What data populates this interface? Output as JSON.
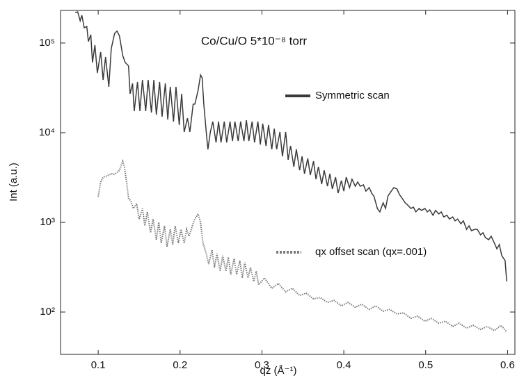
{
  "chart_data": {
    "type": "line",
    "annotation": "Co/Cu/O 5*10⁻⁸ torr",
    "x_label": "qz (Å⁻¹)",
    "y_label": "Int (a.u.)",
    "y_log": true,
    "xlim": [
      0.054,
      0.609
    ],
    "ylim": [
      33.7,
      231000
    ],
    "xticks": [
      0.1,
      0.2,
      0.3,
      0.4,
      0.5,
      0.6
    ],
    "yticks": [
      {
        "value": 100,
        "label": "10²"
      },
      {
        "value": 1000,
        "label": "10³"
      },
      {
        "value": 10000,
        "label": "10⁴"
      },
      {
        "value": 100000,
        "label": "10⁵"
      }
    ],
    "series": [
      {
        "name": "Symmetric scan",
        "color": "#3a3a3a",
        "line_style": "solid",
        "x": [
          0.072,
          0.075,
          0.078,
          0.08,
          0.083,
          0.086,
          0.088,
          0.091,
          0.093,
          0.096,
          0.099,
          0.103,
          0.106,
          0.109,
          0.113,
          0.116,
          0.12,
          0.123,
          0.126,
          0.13,
          0.133,
          0.137,
          0.139,
          0.142,
          0.144,
          0.148,
          0.151,
          0.154,
          0.158,
          0.161,
          0.165,
          0.168,
          0.171,
          0.175,
          0.178,
          0.182,
          0.185,
          0.188,
          0.192,
          0.195,
          0.199,
          0.202,
          0.205,
          0.209,
          0.212,
          0.216,
          0.218,
          0.222,
          0.225,
          0.227,
          0.229,
          0.232,
          0.234,
          0.237,
          0.24,
          0.244,
          0.247,
          0.25,
          0.254,
          0.257,
          0.261,
          0.264,
          0.267,
          0.271,
          0.274,
          0.278,
          0.281,
          0.284,
          0.288,
          0.291,
          0.295,
          0.298,
          0.301,
          0.305,
          0.308,
          0.312,
          0.315,
          0.318,
          0.322,
          0.325,
          0.329,
          0.332,
          0.335,
          0.339,
          0.342,
          0.346,
          0.349,
          0.352,
          0.356,
          0.359,
          0.363,
          0.366,
          0.369,
          0.373,
          0.376,
          0.38,
          0.383,
          0.386,
          0.39,
          0.393,
          0.397,
          0.4,
          0.403,
          0.407,
          0.41,
          0.414,
          0.417,
          0.42,
          0.424,
          0.427,
          0.431,
          0.434,
          0.437,
          0.441,
          0.444,
          0.448,
          0.451,
          0.454,
          0.458,
          0.461,
          0.465,
          0.468,
          0.471,
          0.475,
          0.478,
          0.482,
          0.485,
          0.488,
          0.492,
          0.495,
          0.499,
          0.502,
          0.505,
          0.509,
          0.512,
          0.516,
          0.519,
          0.522,
          0.526,
          0.529,
          0.533,
          0.536,
          0.539,
          0.543,
          0.546,
          0.55,
          0.553,
          0.556,
          0.56,
          0.563,
          0.567,
          0.57,
          0.573,
          0.577,
          0.58,
          0.584,
          0.587,
          0.59,
          0.593,
          0.597,
          0.599
        ],
        "values": [
          219000,
          223000,
          177000,
          204000,
          148000,
          153000,
          104000,
          124000,
          60700,
          94800,
          46400,
          79300,
          38800,
          70000,
          32500,
          86700,
          128000,
          136000,
          120000,
          72400,
          60700,
          55500,
          27200,
          35500,
          17400,
          36800,
          17400,
          38800,
          17400,
          38800,
          16800,
          38800,
          15900,
          36800,
          15100,
          35500,
          14000,
          32500,
          13300,
          32500,
          12200,
          27200,
          10200,
          14500,
          10200,
          20800,
          20800,
          29700,
          44000,
          40900,
          20800,
          10200,
          6520,
          10200,
          13300,
          7780,
          13300,
          7780,
          13300,
          7780,
          13300,
          8070,
          13300,
          8070,
          13300,
          8070,
          13800,
          8070,
          13300,
          7780,
          13300,
          7380,
          12600,
          7120,
          12200,
          6520,
          11100,
          6520,
          10200,
          5450,
          10200,
          4990,
          7120,
          4170,
          6520,
          3810,
          5450,
          3490,
          5160,
          3370,
          4810,
          3030,
          4170,
          2670,
          3810,
          2530,
          3490,
          2360,
          3190,
          2120,
          2920,
          2230,
          3190,
          2440,
          3030,
          2530,
          2820,
          2530,
          2620,
          2230,
          2440,
          2120,
          1940,
          1430,
          1310,
          1650,
          1430,
          1970,
          2230,
          2440,
          2360,
          2040,
          1870,
          1650,
          1560,
          1430,
          1480,
          1310,
          1430,
          1360,
          1430,
          1310,
          1380,
          1200,
          1360,
          1240,
          1310,
          1150,
          1200,
          1090,
          1150,
          1040,
          1090,
          965,
          1040,
          836,
          914,
          807,
          836,
          836,
          725,
          765,
          675,
          640,
          700,
          585,
          507,
          565,
          424,
          375,
          219
        ]
      },
      {
        "name": "qx offset scan (qx=.001)",
        "color": "#7a7a7a",
        "line_style": "dotted",
        "x": [
          0.1,
          0.103,
          0.106,
          0.109,
          0.113,
          0.116,
          0.12,
          0.123,
          0.126,
          0.13,
          0.132,
          0.135,
          0.137,
          0.14,
          0.143,
          0.147,
          0.15,
          0.154,
          0.157,
          0.16,
          0.164,
          0.167,
          0.171,
          0.174,
          0.177,
          0.181,
          0.184,
          0.188,
          0.191,
          0.194,
          0.198,
          0.201,
          0.205,
          0.208,
          0.211,
          0.215,
          0.218,
          0.222,
          0.225,
          0.228,
          0.232,
          0.235,
          0.239,
          0.242,
          0.245,
          0.249,
          0.252,
          0.256,
          0.259,
          0.262,
          0.266,
          0.269,
          0.273,
          0.276,
          0.279,
          0.283,
          0.286,
          0.29,
          0.293,
          0.296,
          0.303,
          0.312,
          0.32,
          0.329,
          0.337,
          0.346,
          0.354,
          0.363,
          0.371,
          0.38,
          0.388,
          0.397,
          0.405,
          0.414,
          0.422,
          0.431,
          0.439,
          0.448,
          0.456,
          0.465,
          0.473,
          0.482,
          0.49,
          0.499,
          0.507,
          0.516,
          0.524,
          0.533,
          0.541,
          0.55,
          0.558,
          0.567,
          0.575,
          0.584,
          0.592,
          0.599
        ],
        "values": [
          1940,
          2820,
          3190,
          3250,
          3370,
          3490,
          3430,
          3610,
          3810,
          4810,
          4170,
          2670,
          1870,
          1710,
          1430,
          1620,
          1090,
          1430,
          914,
          1310,
          765,
          1090,
          640,
          1000,
          585,
          914,
          535,
          836,
          565,
          914,
          585,
          836,
          585,
          836,
          700,
          914,
          1090,
          1240,
          1000,
          585,
          448,
          343,
          490,
          313,
          448,
          286,
          424,
          286,
          409,
          262,
          395,
          262,
          375,
          240,
          355,
          240,
          313,
          219,
          286,
          201,
          240,
          184,
          208,
          168,
          184,
          153,
          162,
          140,
          145,
          128,
          135,
          117,
          128,
          113,
          122,
          107,
          117,
          102,
          107,
          95,
          98,
          85,
          90,
          79,
          85,
          75,
          79,
          69,
          75,
          66,
          71,
          64,
          69,
          62,
          71,
          60
        ]
      }
    ]
  }
}
